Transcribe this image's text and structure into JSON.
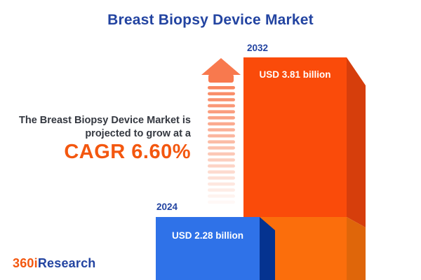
{
  "title": "Breast Biopsy Device Market",
  "description": {
    "line1": "The Breast Biopsy Device Market is",
    "line2": "projected to grow at a",
    "cagr": "CAGR 6.60%"
  },
  "chart_data": {
    "type": "bar",
    "title": "Breast Biopsy Device Market",
    "unit": "USD billion",
    "categories": [
      "2024",
      "2032"
    ],
    "values": [
      2.28,
      3.81
    ],
    "value_labels": [
      "USD 2.28 billion",
      "USD 3.81 billion"
    ],
    "cagr_percent": 6.6,
    "cagr_label": "CAGR 6.60%",
    "bar_colors": [
      "#2F72E8",
      "#FA4B0A"
    ],
    "orientation": "vertical",
    "legend": "none",
    "annotations": [
      "fading dashed upward growth arrow between bars"
    ]
  },
  "logo": {
    "prefix": "360i",
    "suffix": "Research"
  },
  "colors": {
    "title_blue": "#2344A1",
    "text_dark": "#343840",
    "cagr_orange": "#F3570F",
    "bar2024_front": "#2F72E8",
    "bar2024_side": "#053390",
    "bar2032_front_top": "#FA4B0A",
    "bar2032_front_bottom": "#FB6E0C",
    "bar2032_side_top": "#D63E0C",
    "bar2032_side_bottom": "#DF660A",
    "arrow_orange": "#F8794E",
    "value_text": "#FFFFFF",
    "background": "#FFFFFF"
  }
}
